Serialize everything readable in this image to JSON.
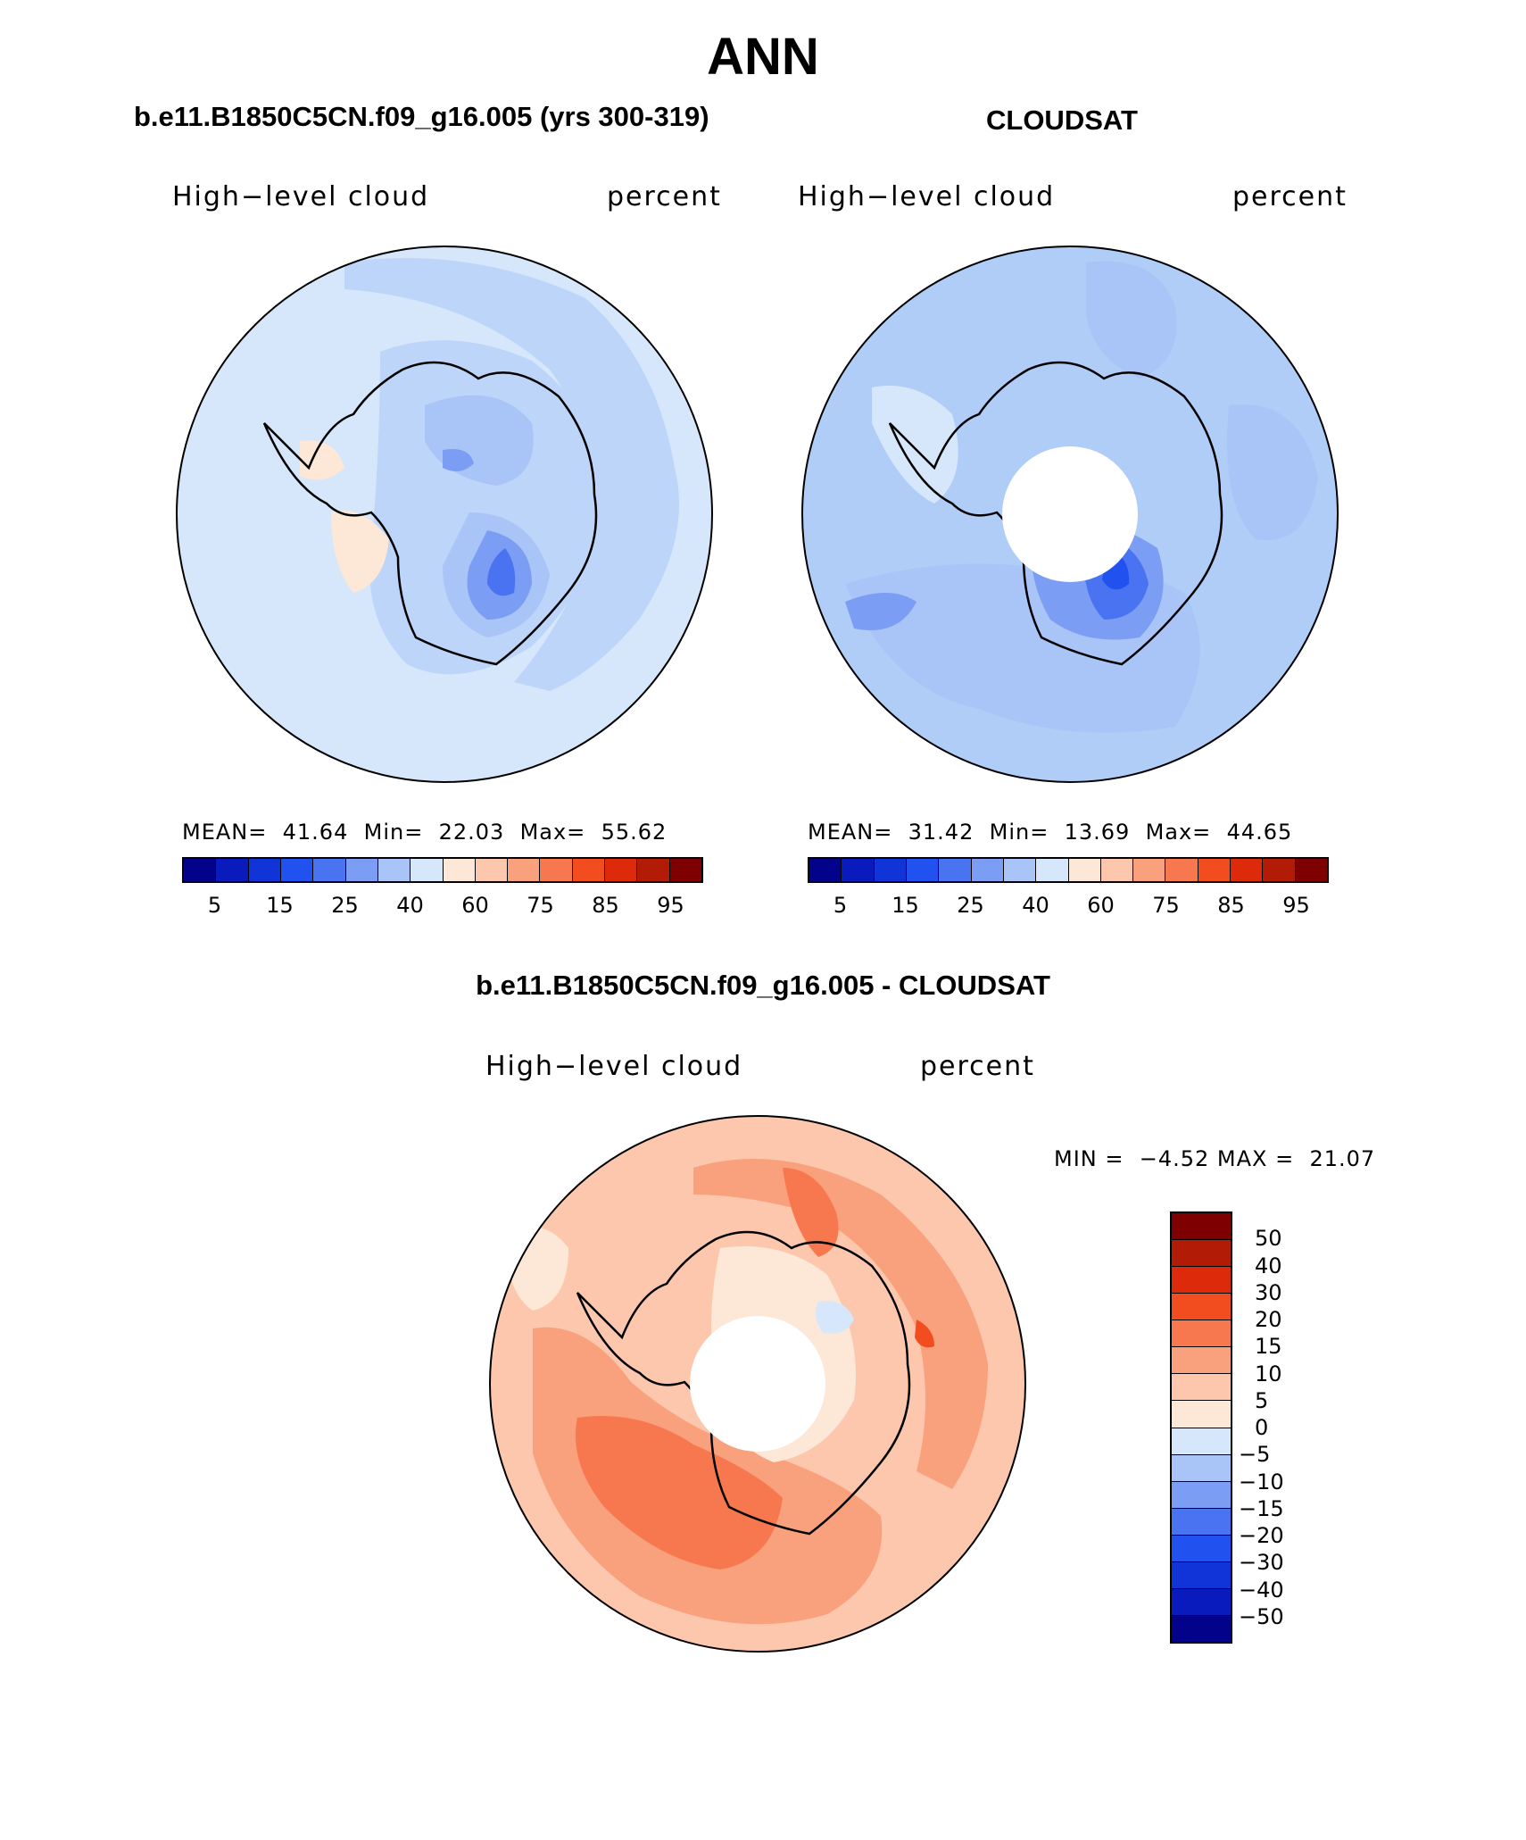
{
  "title": "ANN",
  "panels": [
    {
      "title": "b.e11.B1850C5CN.f09_g16.005 (yrs 300-319)",
      "left_label": "High−level cloud",
      "right_label": "percent",
      "stats": {
        "mean_label": "MEAN=",
        "mean": "41.64",
        "min_label": "Min=",
        "min": "22.03",
        "max_label": "Max=",
        "max": "55.62"
      },
      "dominant_color": "#d6e7fb"
    },
    {
      "title": "CLOUDSAT",
      "left_label": "High−level cloud",
      "right_label": "percent",
      "stats": {
        "mean_label": "MEAN=",
        "mean": "31.42",
        "min_label": "Min=",
        "min": "13.69",
        "max_label": "Max=",
        "max": "44.65"
      },
      "dominant_color": "#b0cdf8"
    },
    {
      "title": "b.e11.B1850C5CN.f09_g16.005 - CLOUDSAT",
      "left_label": "High−level cloud",
      "right_label": "percent",
      "stats_text": "MIN =  −4.52 MAX =  21.07",
      "dominant_color": "#fcc8ae"
    }
  ],
  "colorbar_abs": {
    "colors": [
      "#02028a",
      "#0a1bbd",
      "#1134d8",
      "#2151ee",
      "#4a73f2",
      "#7b9df4",
      "#a9c4f7",
      "#d6e7fb",
      "#fde7d6",
      "#fcc7ad",
      "#f9a07c",
      "#f7784f",
      "#f24d1f",
      "#dd2a0b",
      "#b21c07",
      "#7f0000"
    ],
    "tick_labels": [
      "5",
      "15",
      "25",
      "40",
      "60",
      "75",
      "85",
      "95"
    ]
  },
  "colorbar_diff": {
    "colors": [
      "#7f0000",
      "#b21c07",
      "#dd2a0b",
      "#f24d1f",
      "#f7784f",
      "#f9a07c",
      "#fcc7ad",
      "#fde7d6",
      "#d6e7fb",
      "#a9c4f7",
      "#7b9df4",
      "#4a73f2",
      "#2151ee",
      "#1134d8",
      "#0a1bbd",
      "#02028a"
    ],
    "tick_labels": [
      "50",
      "40",
      "30",
      "20",
      "15",
      "10",
      "5",
      "0",
      "−5",
      "−10",
      "−15",
      "−20",
      "−30",
      "−40",
      "−50"
    ]
  },
  "map": {
    "projection": "south-polar stereographic",
    "coastline": "Antarctica",
    "missing_pole_in_obs": true
  }
}
